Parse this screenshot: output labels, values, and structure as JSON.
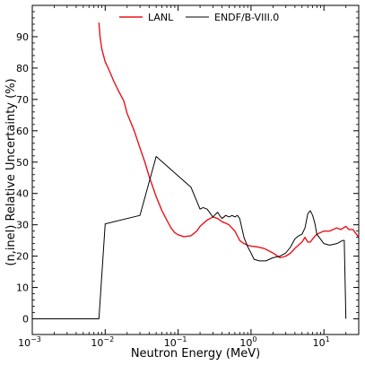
{
  "chart_data": {
    "type": "line",
    "title": "",
    "xlabel": "Neutron Energy (MeV)",
    "ylabel": "(n,inel) Relative Uncertainty (%)",
    "xscale": "log",
    "xlim": [
      0.001,
      30
    ],
    "ylim": [
      -5,
      100
    ],
    "xticks": [
      {
        "value": 0.001,
        "base": "10",
        "exp": "−3"
      },
      {
        "value": 0.01,
        "base": "10",
        "exp": "−2"
      },
      {
        "value": 0.1,
        "base": "10",
        "exp": "−1"
      },
      {
        "value": 1,
        "base": "10",
        "exp": "0"
      },
      {
        "value": 10,
        "base": "10",
        "exp": "1"
      }
    ],
    "yticks": [
      {
        "value": 0,
        "label": "0"
      },
      {
        "value": 10,
        "label": "10"
      },
      {
        "value": 20,
        "label": "20"
      },
      {
        "value": 30,
        "label": "30"
      },
      {
        "value": 40,
        "label": "40"
      },
      {
        "value": 50,
        "label": "50"
      },
      {
        "value": 60,
        "label": "60"
      },
      {
        "value": 70,
        "label": "70"
      },
      {
        "value": 80,
        "label": "80"
      },
      {
        "value": 90,
        "label": "90"
      }
    ],
    "grid": false,
    "legend": "top-center",
    "series": [
      {
        "name": "LANL",
        "color": "#e8141c",
        "x": [
          0.0082,
          0.0085,
          0.009,
          0.01,
          0.011,
          0.013,
          0.015,
          0.018,
          0.02,
          0.025,
          0.03,
          0.035,
          0.04,
          0.05,
          0.06,
          0.07,
          0.08,
          0.09,
          0.1,
          0.12,
          0.15,
          0.18,
          0.2,
          0.25,
          0.3,
          0.35,
          0.4,
          0.45,
          0.5,
          0.6,
          0.7,
          0.8,
          0.9,
          1.0,
          1.2,
          1.5,
          2.0,
          2.5,
          3.0,
          3.5,
          4.0,
          5.0,
          5.5,
          6.0,
          6.5,
          7.0,
          8.0,
          10.0,
          12.0,
          15.0,
          17.0,
          20.0,
          22.0,
          25.0,
          30.0
        ],
        "y": [
          94.5,
          90.0,
          86.0,
          82.0,
          80.0,
          76.0,
          73.0,
          69.5,
          65.5,
          60.0,
          54.5,
          50.0,
          45.5,
          39.0,
          34.5,
          31.5,
          29.0,
          27.5,
          26.8,
          26.2,
          26.5,
          28.0,
          29.5,
          31.5,
          32.5,
          32.0,
          31.0,
          30.5,
          30.0,
          28.0,
          25.0,
          24.0,
          23.5,
          23.2,
          23.0,
          22.5,
          21.0,
          19.5,
          20.0,
          21.0,
          22.5,
          24.5,
          26.0,
          24.5,
          24.5,
          25.5,
          27.0,
          28.0,
          28.0,
          29.0,
          28.5,
          29.5,
          28.5,
          28.5,
          26.0
        ]
      },
      {
        "name": "ENDF/B-VIII.0",
        "color": "#000000",
        "x": [
          0.001,
          0.0082,
          0.01,
          0.03,
          0.05,
          0.15,
          0.2,
          0.22,
          0.25,
          0.3,
          0.33,
          0.35,
          0.37,
          0.4,
          0.45,
          0.5,
          0.55,
          0.6,
          0.65,
          0.7,
          0.8,
          0.9,
          1.0,
          1.1,
          1.3,
          1.6,
          2.0,
          2.5,
          3.0,
          3.5,
          4.0,
          4.5,
          5.0,
          5.5,
          6.0,
          6.5,
          7.0,
          7.5,
          8.0,
          10.0,
          12.0,
          15.0,
          18.0,
          19.0,
          20.0
        ],
        "y": [
          0,
          0,
          30.3,
          33.0,
          51.8,
          42.0,
          35.0,
          35.5,
          35.0,
          32.5,
          33.5,
          34.0,
          33.0,
          32.0,
          33.0,
          32.5,
          33.0,
          32.5,
          33.0,
          32.0,
          26.0,
          23.0,
          21.0,
          19.0,
          18.5,
          18.5,
          19.5,
          20.0,
          21.0,
          23.0,
          25.5,
          26.5,
          27.0,
          29.0,
          33.5,
          34.5,
          33.0,
          30.5,
          27.0,
          24.0,
          23.5,
          24.0,
          25.0,
          25.0,
          0
        ]
      }
    ]
  }
}
